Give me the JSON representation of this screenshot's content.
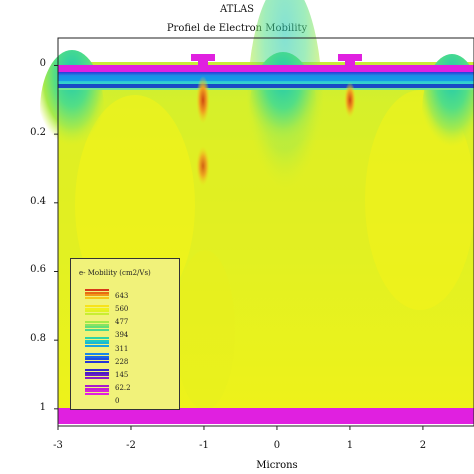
{
  "chart_data": {
    "type": "heatmap",
    "title": "ATLAS",
    "subtitle": "Profiel de Electron Mobility",
    "xlabel": "Microns",
    "ylabel": "",
    "x_ticks": [
      "-3",
      "-2",
      "-1",
      "0",
      "1",
      "2"
    ],
    "x_tick_values": [
      -3,
      -2,
      -1,
      0,
      1,
      2
    ],
    "y_ticks": [
      "0",
      "0.2",
      "0.4",
      "0.6",
      "0.8",
      "1"
    ],
    "y_tick_values": [
      0,
      0.2,
      0.4,
      0.6,
      0.8,
      1
    ],
    "xlim": [
      -3,
      2.7
    ],
    "ylim": [
      1.05,
      -0.08
    ],
    "legend": {
      "title": "e- Mobility (cm2/Vs)",
      "placement": "bottom-left",
      "levels": [
        "643",
        "560",
        "477",
        "394",
        "311",
        "228",
        "145",
        "62.2",
        "0"
      ]
    },
    "colors": {
      "background_field": "#e8f21c",
      "metal_contact": "#e020e0",
      "surface_low_mobility": "#1aa8e8",
      "mid_channel": "#3cd9a8",
      "hotspot": "#e07010"
    }
  }
}
